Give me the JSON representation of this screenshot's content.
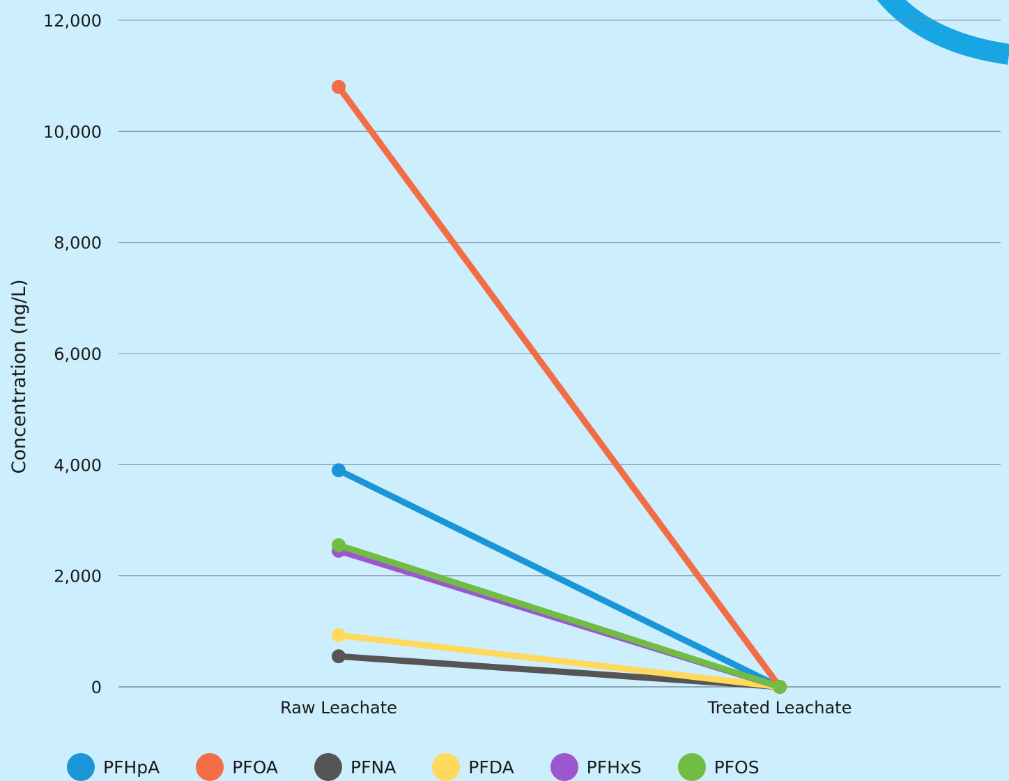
{
  "chart_data": {
    "type": "line",
    "title": "",
    "xlabel": "",
    "ylabel": "Concentration (ng/L)",
    "categories": [
      "Raw Leachate",
      "Treated Leachate"
    ],
    "ylim": [
      0,
      12000
    ],
    "yticks": [
      0,
      2000,
      4000,
      6000,
      8000,
      10000,
      12000
    ],
    "ytick_labels": [
      "0",
      "2,000",
      "4,000",
      "6,000",
      "8,000",
      "10,000",
      "12,000"
    ],
    "grid": true,
    "legend_position": "bottom",
    "series": [
      {
        "name": "PFHpA",
        "color": "#1a96d8",
        "values": [
          3900,
          0
        ]
      },
      {
        "name": "PFOA",
        "color": "#f26d45",
        "values": [
          10800,
          0
        ]
      },
      {
        "name": "PFNA",
        "color": "#555555",
        "values": [
          550,
          0
        ]
      },
      {
        "name": "PFDA",
        "color": "#ffd95c",
        "values": [
          930,
          0
        ]
      },
      {
        "name": "PFHxS",
        "color": "#9b57cf",
        "values": [
          2450,
          0
        ]
      },
      {
        "name": "PFOS",
        "color": "#71bd44",
        "values": [
          2550,
          0
        ]
      }
    ]
  },
  "decoration": {
    "arc_color": "#17a6e3"
  }
}
